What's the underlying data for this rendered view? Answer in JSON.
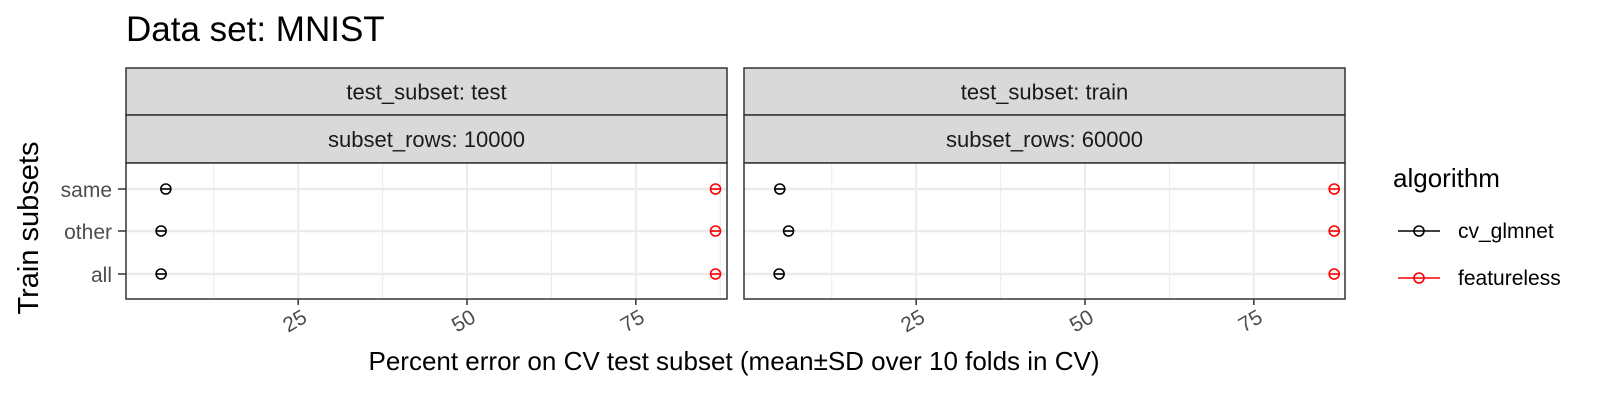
{
  "chart_data": {
    "type": "scatter",
    "title": "Data set: MNIST",
    "xlabel": "Percent error on CV test subset (mean±SD over 10 folds in CV)",
    "ylabel": "Train subsets",
    "xlim": [
      -0.5,
      88.5
    ],
    "x_ticks": [
      25,
      50,
      75
    ],
    "x_tick_labels": [
      "25",
      "50",
      "75"
    ],
    "y_categories": [
      "same",
      "other",
      "all"
    ],
    "grid": true,
    "legend": {
      "title": "algorithm",
      "position": "right",
      "entries": [
        {
          "name": "cv_glmnet",
          "color": "#000000"
        },
        {
          "name": "featureless",
          "color": "#ff0000"
        }
      ]
    },
    "panels": [
      {
        "strip_top": "test_subset: test",
        "strip_bottom": "subset_rows: 10000",
        "series": [
          {
            "name": "cv_glmnet",
            "color": "#000000",
            "points": [
              {
                "y": "same",
                "x": 5.4
              },
              {
                "y": "other",
                "x": 4.7
              },
              {
                "y": "all",
                "x": 4.7
              }
            ]
          },
          {
            "name": "featureless",
            "color": "#ff0000",
            "points": [
              {
                "y": "same",
                "x": 86.8
              },
              {
                "y": "other",
                "x": 86.8
              },
              {
                "y": "all",
                "x": 86.8
              }
            ]
          }
        ]
      },
      {
        "strip_top": "test_subset: train",
        "strip_bottom": "subset_rows: 60000",
        "series": [
          {
            "name": "cv_glmnet",
            "color": "#000000",
            "points": [
              {
                "y": "same",
                "x": 4.8
              },
              {
                "y": "other",
                "x": 6.1
              },
              {
                "y": "all",
                "x": 4.7
              }
            ]
          },
          {
            "name": "featureless",
            "color": "#ff0000",
            "points": [
              {
                "y": "same",
                "x": 86.9
              },
              {
                "y": "other",
                "x": 86.9
              },
              {
                "y": "all",
                "x": 86.9
              }
            ]
          }
        ]
      }
    ]
  }
}
